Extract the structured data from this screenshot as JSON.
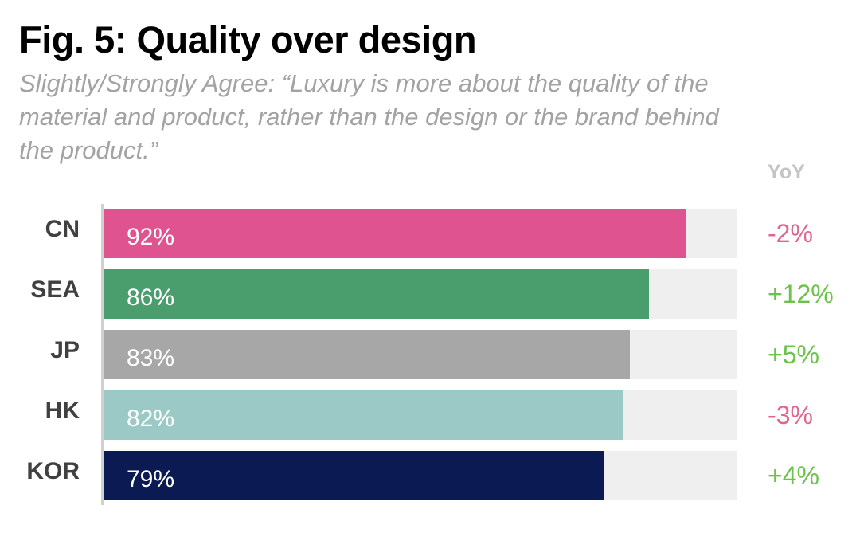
{
  "chart_data": {
    "type": "bar",
    "orientation": "horizontal",
    "title": "Fig. 5: Quality over design",
    "subtitle": "Slightly/Strongly Agree: “Luxury is more about the quality of the material and product, rather than the design or the brand behind the product.”",
    "categories": [
      "CN",
      "SEA",
      "JP",
      "HK",
      "KOR"
    ],
    "values": [
      92,
      86,
      83,
      82,
      79
    ],
    "value_labels": [
      "92%",
      "86%",
      "83%",
      "82%",
      "79%"
    ],
    "xlim": [
      0,
      100
    ],
    "bar_colors": [
      "#de5390",
      "#4a9e6d",
      "#a7a7a7",
      "#9bc9c5",
      "#0b1a52"
    ],
    "track_color": "#efefef",
    "yoy_header": "YoY",
    "yoy_labels": [
      "-2%",
      "+12%",
      "+5%",
      "-3%",
      "+4%"
    ],
    "yoy_values": [
      -2,
      12,
      5,
      -3,
      4
    ],
    "yoy_colors": {
      "negative": "#e0668f",
      "positive": "#6cc24a"
    },
    "grid": false,
    "legend": "none"
  }
}
